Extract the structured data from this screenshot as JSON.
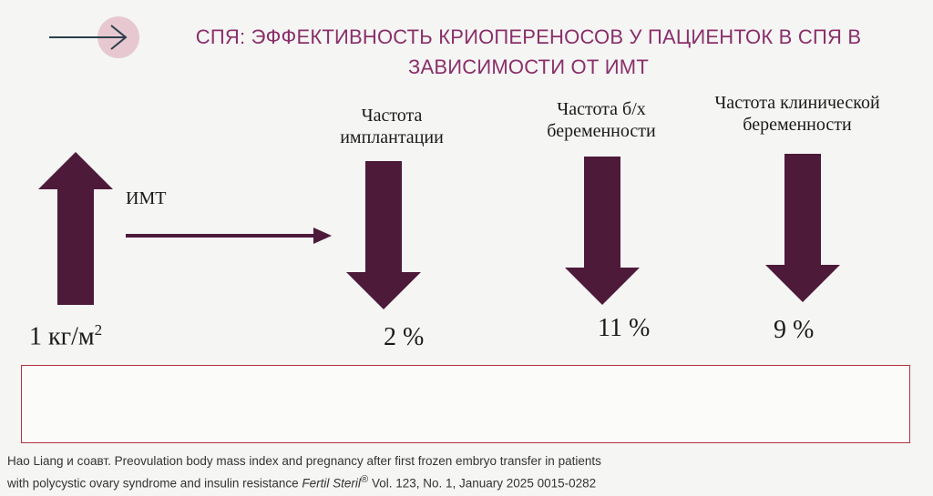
{
  "title": "СПЯ: ЭФФЕКТИВНОСТЬ КРИОПЕРЕНОСОВ  У ПАЦИЕНТОК В СПЯ В ЗАВИСИМОСТИ ОТ ИМТ",
  "colors": {
    "accent": "#8a2f6a",
    "arrow_fill": "#4d1a3a",
    "box_border": "#b4323f",
    "nav_circle": "#e7c8d1"
  },
  "bmi": {
    "label": "ИМТ",
    "value": "1 кг/м",
    "superscript": "2",
    "direction": "up"
  },
  "outcomes": [
    {
      "label_line1": "Частота",
      "label_line2": "имплантации",
      "change": "2 %",
      "direction": "down"
    },
    {
      "label_line1": "Частота б/х",
      "label_line2": "беременности",
      "change": "11 %",
      "direction": "down"
    },
    {
      "label_line1": "Частота клинической",
      "label_line2": "беременности",
      "change": "9 %",
      "direction": "down"
    }
  ],
  "citation": {
    "line1": "Hao Liang и соавт. Preovulation body mass index and pregnancy after first frozen embryo transfer in patients",
    "line2_plain": "with polycystic ovary syndrome and insulin resistance ",
    "journal": "Fertil Steril",
    "registered": "®",
    "line2_rest": " Vol. 123, No. 1, January 2025 0015-0282"
  }
}
